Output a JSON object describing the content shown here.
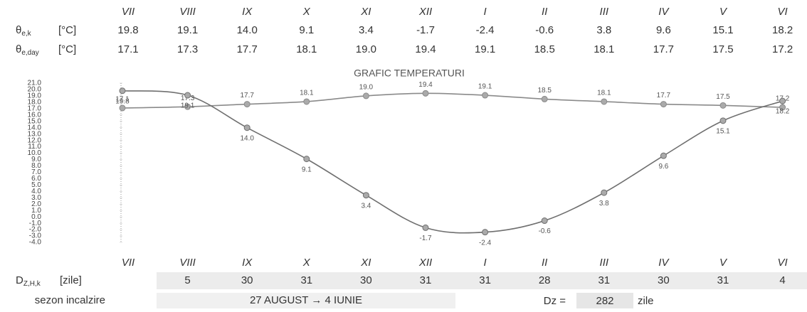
{
  "top_table": {
    "months": [
      "VII",
      "VIII",
      "IX",
      "X",
      "XI",
      "XII",
      "I",
      "II",
      "III",
      "IV",
      "V",
      "VI"
    ],
    "rows": [
      {
        "symbol": "θ",
        "sub": "e,k",
        "unit": "[°C]",
        "cells": [
          "19.8",
          "19.1",
          "14.0",
          "9.1",
          "3.4",
          "-1.7",
          "-2.4",
          "-0.6",
          "3.8",
          "9.6",
          "15.1",
          "18.2"
        ]
      },
      {
        "symbol": "θ",
        "sub": "e,day",
        "unit": "[°C]",
        "cells": [
          "17.1",
          "17.3",
          "17.7",
          "18.1",
          "19.0",
          "19.4",
          "19.1",
          "18.5",
          "18.1",
          "17.7",
          "17.5",
          "17.2"
        ]
      }
    ]
  },
  "chart_data": {
    "type": "line",
    "title": "GRAFIC  TEMPERATURI",
    "categories": [
      "VII",
      "VIII",
      "IX",
      "X",
      "XI",
      "XII",
      "I",
      "II",
      "III",
      "IV",
      "V",
      "VI"
    ],
    "ylim": [
      -4,
      21
    ],
    "yticks": [
      {
        "value": 21,
        "label": "21.0"
      },
      {
        "value": 20,
        "label": "20.0"
      },
      {
        "value": 19,
        "label": "19.0"
      },
      {
        "value": 18,
        "label": "18.0"
      },
      {
        "value": 17,
        "label": "17.0"
      },
      {
        "value": 16,
        "label": "16.0"
      },
      {
        "value": 15,
        "label": "15.0"
      },
      {
        "value": 14,
        "label": "14.0"
      },
      {
        "value": 13,
        "label": "13.0"
      },
      {
        "value": 12,
        "label": "12.0"
      },
      {
        "value": 11,
        "label": "11.0"
      },
      {
        "value": 10,
        "label": "10.0"
      },
      {
        "value": 9,
        "label": "9.0"
      },
      {
        "value": 8,
        "label": "8.0"
      },
      {
        "value": 7,
        "label": "7.0"
      },
      {
        "value": 6,
        "label": "6.0"
      },
      {
        "value": 5,
        "label": "5.0"
      },
      {
        "value": 4,
        "label": "4.0"
      },
      {
        "value": 3,
        "label": "3.0"
      },
      {
        "value": 2,
        "label": "2.0"
      },
      {
        "value": 1,
        "label": "1.0"
      },
      {
        "value": 0,
        "label": "0.0"
      },
      {
        "value": -1,
        "label": "-1.0"
      },
      {
        "value": -2,
        "label": "-2.0"
      },
      {
        "value": -3,
        "label": "-3.0"
      },
      {
        "value": -4,
        "label": "-4.0"
      }
    ],
    "series": [
      {
        "color": "#8a8a8a",
        "values": [
          17.1,
          17.3,
          17.7,
          18.1,
          19.0,
          19.4,
          19.1,
          18.5,
          18.1,
          17.7,
          17.5,
          17.2
        ],
        "value_labels": [
          "17.1",
          "17.3",
          "17.7",
          "18.1",
          "19.0",
          "19.4",
          "19.1",
          "18.5",
          "18.1",
          "17.7",
          "17.5",
          "17.2"
        ]
      },
      {
        "color": "#6f6f6f",
        "values": [
          19.8,
          19.1,
          14.0,
          9.1,
          3.4,
          -1.7,
          -2.4,
          -0.6,
          3.8,
          9.6,
          15.1,
          18.2
        ],
        "value_labels": [
          "19.8",
          "19.1",
          "14.0",
          "9.1",
          "3.4",
          "-1.7",
          "-2.4",
          "-0.6",
          "3.8",
          "9.6",
          "15.1",
          "18.2"
        ]
      }
    ]
  },
  "bottom_table": {
    "symbol": "D",
    "sub": "Z,H,k",
    "unit": "[zile]",
    "cells": [
      null,
      "5",
      "30",
      "31",
      "30",
      "31",
      "31",
      "28",
      "31",
      "30",
      "31",
      "4"
    ],
    "season_label": "sezon incalzire",
    "season_period": "27 AUGUST → 4 IUNIE",
    "dz_label": "Dz =",
    "dz_value": "282",
    "dz_unit": "zile"
  }
}
